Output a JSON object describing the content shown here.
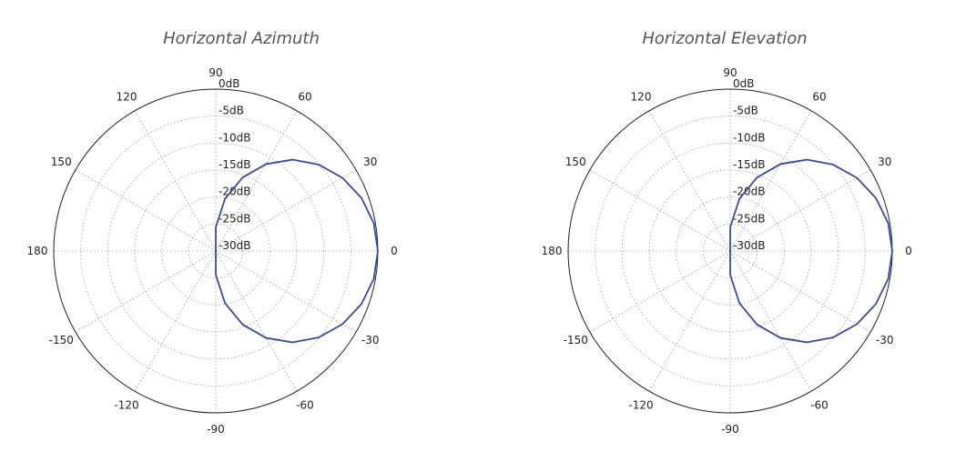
{
  "chart_data": [
    {
      "type": "polar_line",
      "title": "Horizontal Azimuth",
      "angle_ticks": [
        "0",
        "30",
        "60",
        "90",
        "120",
        "150",
        "180",
        "-150",
        "-120",
        "-90",
        "-60",
        "-30"
      ],
      "angle_tick_values_deg": [
        0,
        30,
        60,
        90,
        120,
        150,
        180,
        -150,
        -120,
        -90,
        -60,
        -30
      ],
      "radial_ticks": [
        "-30dB",
        "-25dB",
        "-20dB",
        "-15dB",
        "-10dB",
        "-5dB",
        "0dB"
      ],
      "radial_tick_values_db": [
        -30,
        -25,
        -20,
        -15,
        -10,
        -5,
        0
      ],
      "rlim_db": [
        -30,
        0
      ],
      "grid": true,
      "line_color": "#3a4a9a",
      "pattern": {
        "angle_deg": [
          0,
          10,
          20,
          30,
          40,
          50,
          60,
          70,
          80,
          90,
          100,
          110,
          120,
          130,
          140,
          150,
          160,
          170,
          180
        ],
        "level_db": [
          0,
          -0.3,
          -1.3,
          -2.9,
          -5.1,
          -7.9,
          -11.4,
          -15.5,
          -20.2,
          -25.6,
          -30,
          -30,
          -30,
          -30,
          -30,
          -30,
          -30,
          -30,
          -30
        ]
      }
    },
    {
      "type": "polar_line",
      "title": "Horizontal Elevation",
      "angle_ticks": [
        "0",
        "30",
        "60",
        "90",
        "120",
        "150",
        "180",
        "-150",
        "-120",
        "-90",
        "-60",
        "-30"
      ],
      "angle_tick_values_deg": [
        0,
        30,
        60,
        90,
        120,
        150,
        180,
        -150,
        -120,
        -90,
        -60,
        -30
      ],
      "radial_ticks": [
        "-30dB",
        "-25dB",
        "-20dB",
        "-15dB",
        "-10dB",
        "-5dB",
        "0dB"
      ],
      "radial_tick_values_db": [
        -30,
        -25,
        -20,
        -15,
        -10,
        -5,
        0
      ],
      "rlim_db": [
        -30,
        0
      ],
      "grid": true,
      "line_color": "#3a4a9a",
      "pattern": {
        "angle_deg": [
          0,
          10,
          20,
          30,
          40,
          50,
          60,
          70,
          80,
          90,
          100,
          110,
          120,
          130,
          140,
          150,
          160,
          170,
          180
        ],
        "level_db": [
          0,
          -0.3,
          -1.3,
          -2.9,
          -5.1,
          -7.9,
          -11.4,
          -15.5,
          -20.2,
          -25.6,
          -30,
          -30,
          -30,
          -30,
          -30,
          -30,
          -30,
          -30,
          -30
        ]
      }
    }
  ]
}
